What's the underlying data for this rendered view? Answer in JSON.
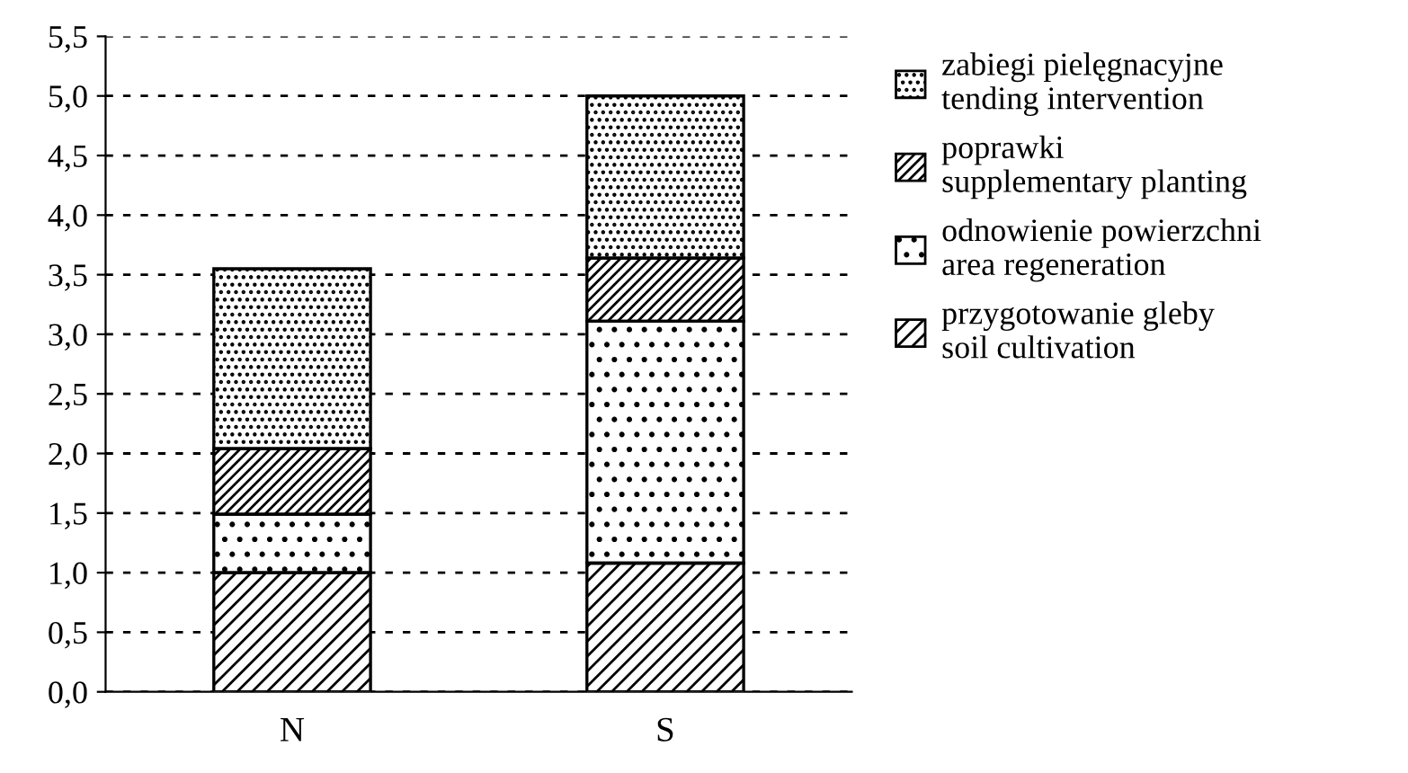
{
  "chart_data": {
    "type": "bar",
    "stacked": true,
    "categories": [
      "N",
      "S"
    ],
    "series": [
      {
        "name": "przygotowanie gleby\nsoil cultivation",
        "color": "#ffffff",
        "values": [
          1.0,
          1.08
        ]
      },
      {
        "name": "odnowienie powierzchni\narea regeneration",
        "color": "#ffffff",
        "values": [
          0.49,
          2.03
        ]
      },
      {
        "name": "poprawki\nsupplementary planting",
        "color": "#ffffff",
        "values": [
          0.55,
          0.53
        ]
      },
      {
        "name": "zabiegi pielęgnacyjne\ntending intervention",
        "color": "#ffffff",
        "values": [
          1.51,
          1.36
        ]
      }
    ],
    "ylim": [
      0,
      5.5
    ],
    "yticks": [
      {
        "value": 0,
        "label": "0,0"
      },
      {
        "value": 0.5,
        "label": "0,5"
      },
      {
        "value": 1,
        "label": "1,0"
      },
      {
        "value": 1.5,
        "label": "1,5"
      },
      {
        "value": 2,
        "label": "2,0"
      },
      {
        "value": 2.5,
        "label": "2,5"
      },
      {
        "value": 3,
        "label": "3,0"
      },
      {
        "value": 3.5,
        "label": "3,5"
      },
      {
        "value": 4,
        "label": "4,0"
      },
      {
        "value": 4.5,
        "label": "4,5"
      },
      {
        "value": 5,
        "label": "5,0"
      },
      {
        "value": 5.5,
        "label": "5,5"
      }
    ],
    "grid": "y",
    "legend": "right"
  }
}
